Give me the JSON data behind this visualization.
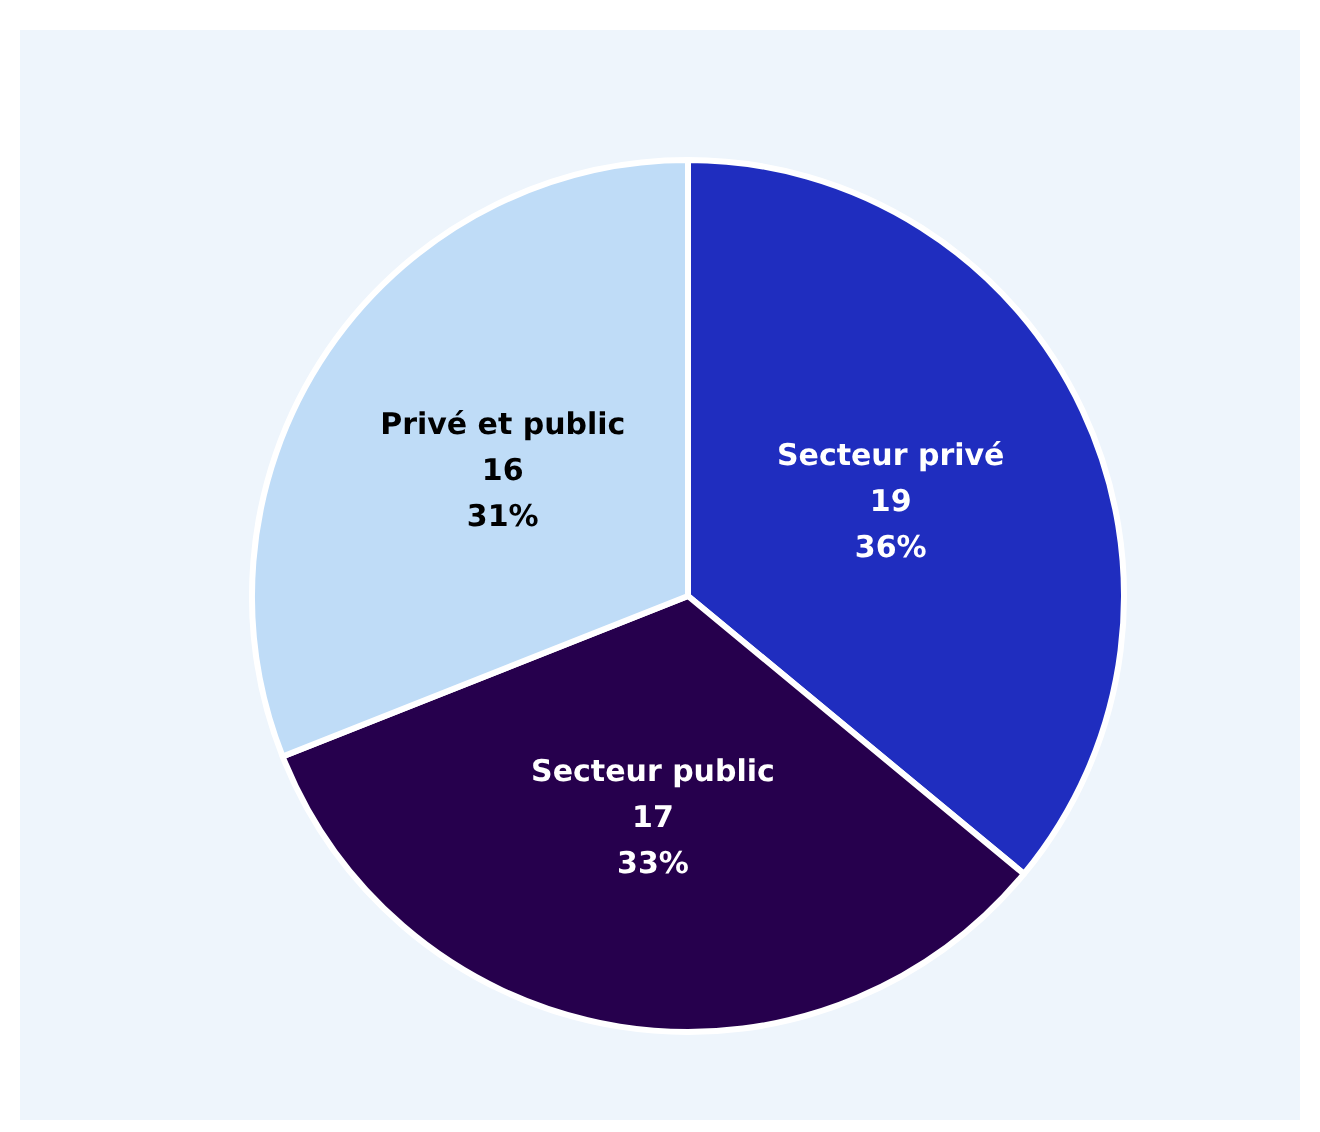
{
  "chart_data": {
    "type": "pie",
    "categories": [
      "Secteur privé",
      "Secteur public",
      "Privé et public"
    ],
    "values": [
      36,
      33,
      31
    ],
    "colors": [
      "#1f2dbf",
      "#26004d",
      "#bfdcf7"
    ],
    "value_labels": [
      "19\n36%",
      "17\n33%",
      "16\n31%"
    ]
  }
}
